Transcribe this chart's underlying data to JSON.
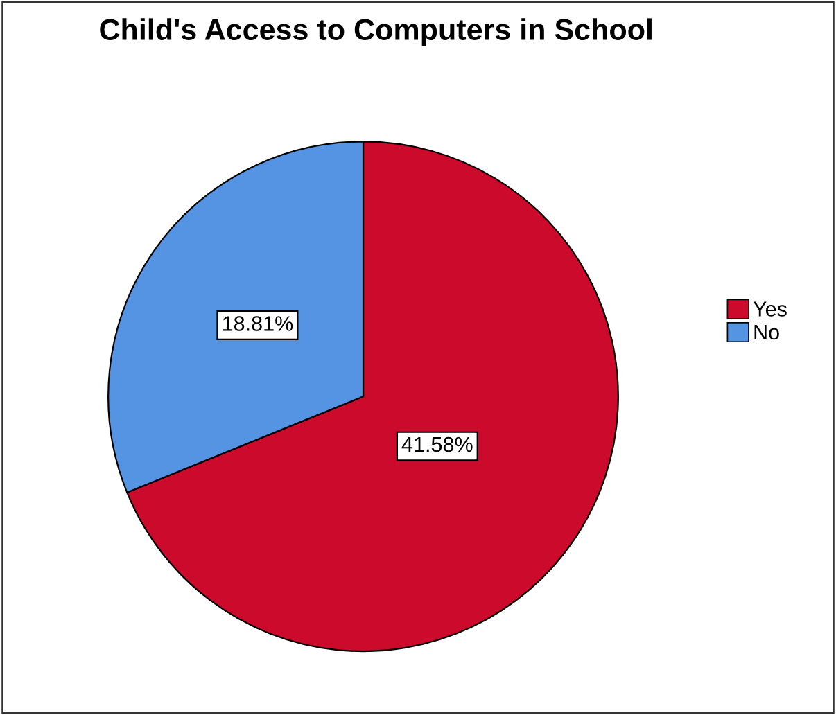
{
  "chart_data": {
    "type": "pie",
    "title": "Child's Access to Computers in School",
    "categories": [
      "Yes",
      "No"
    ],
    "values": [
      41.58,
      18.81
    ],
    "value_labels": [
      "41.58%",
      "18.81%"
    ],
    "colors": [
      "#cc0a2c",
      "#5593e3"
    ],
    "legend": "right"
  }
}
